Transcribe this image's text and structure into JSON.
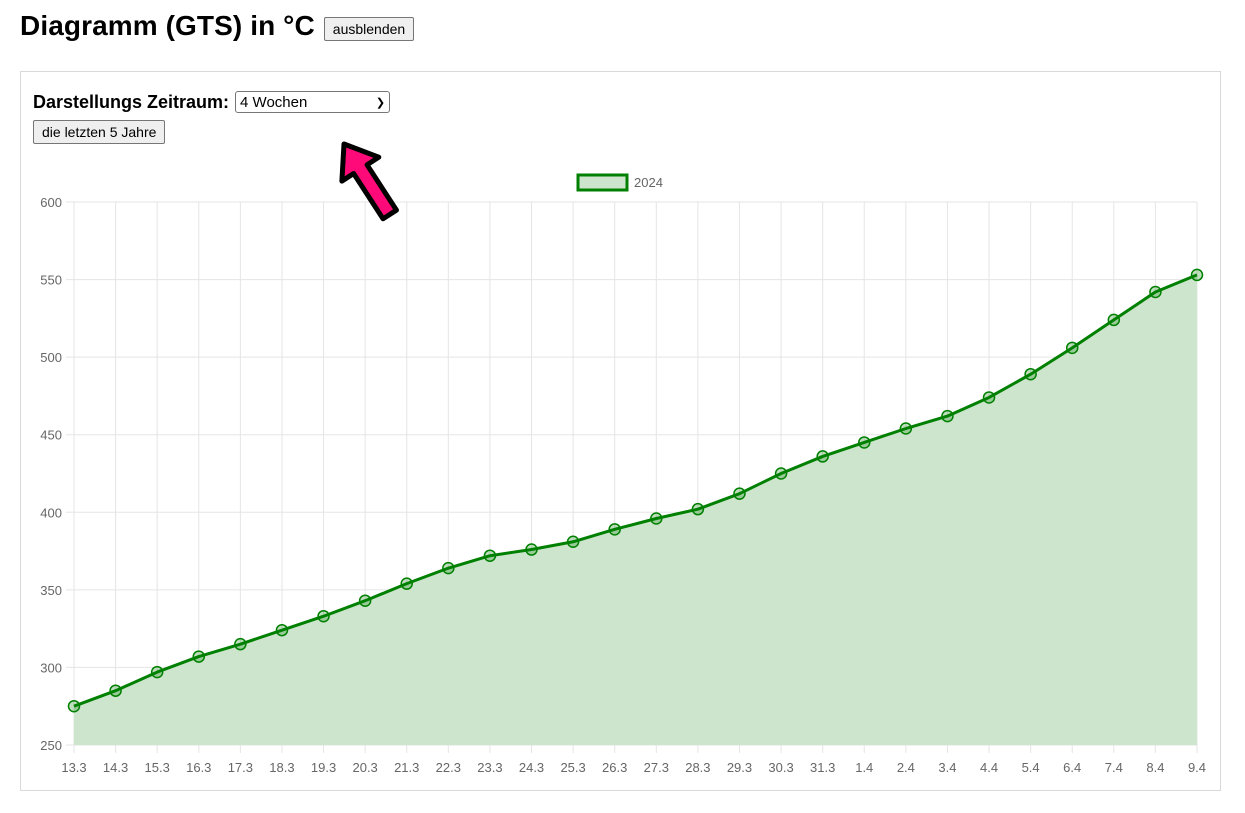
{
  "header": {
    "title": "Diagramm (GTS) in °C",
    "hide_button": "ausblenden"
  },
  "controls": {
    "range_label": "Darstellungs Zeitraum:",
    "range_selected": "4 Wochen",
    "years_button": "die letzten 5 Jahre"
  },
  "colors": {
    "series_line": "#008000",
    "series_fill": "#cce5cc",
    "grid": "#e5e5e5",
    "arrow": "#ff0a78"
  },
  "chart_data": {
    "type": "area",
    "categories": [
      "13.3",
      "14.3",
      "15.3",
      "16.3",
      "17.3",
      "18.3",
      "19.3",
      "20.3",
      "21.3",
      "22.3",
      "23.3",
      "24.3",
      "25.3",
      "26.3",
      "27.3",
      "28.3",
      "29.3",
      "30.3",
      "31.3",
      "1.4",
      "2.4",
      "3.4",
      "4.4",
      "5.4",
      "6.4",
      "7.4",
      "8.4",
      "9.4"
    ],
    "series": [
      {
        "name": "2024",
        "values": [
          275,
          285,
          297,
          307,
          315,
          324,
          333,
          343,
          354,
          364,
          372,
          376,
          381,
          389,
          396,
          402,
          412,
          425,
          436,
          445,
          454,
          462,
          474,
          489,
          506,
          524,
          542,
          553
        ]
      }
    ],
    "ylim": [
      250,
      600
    ],
    "yticks": [
      250,
      300,
      350,
      400,
      450,
      500,
      550,
      600
    ],
    "grid": true,
    "legend": "top-center"
  }
}
